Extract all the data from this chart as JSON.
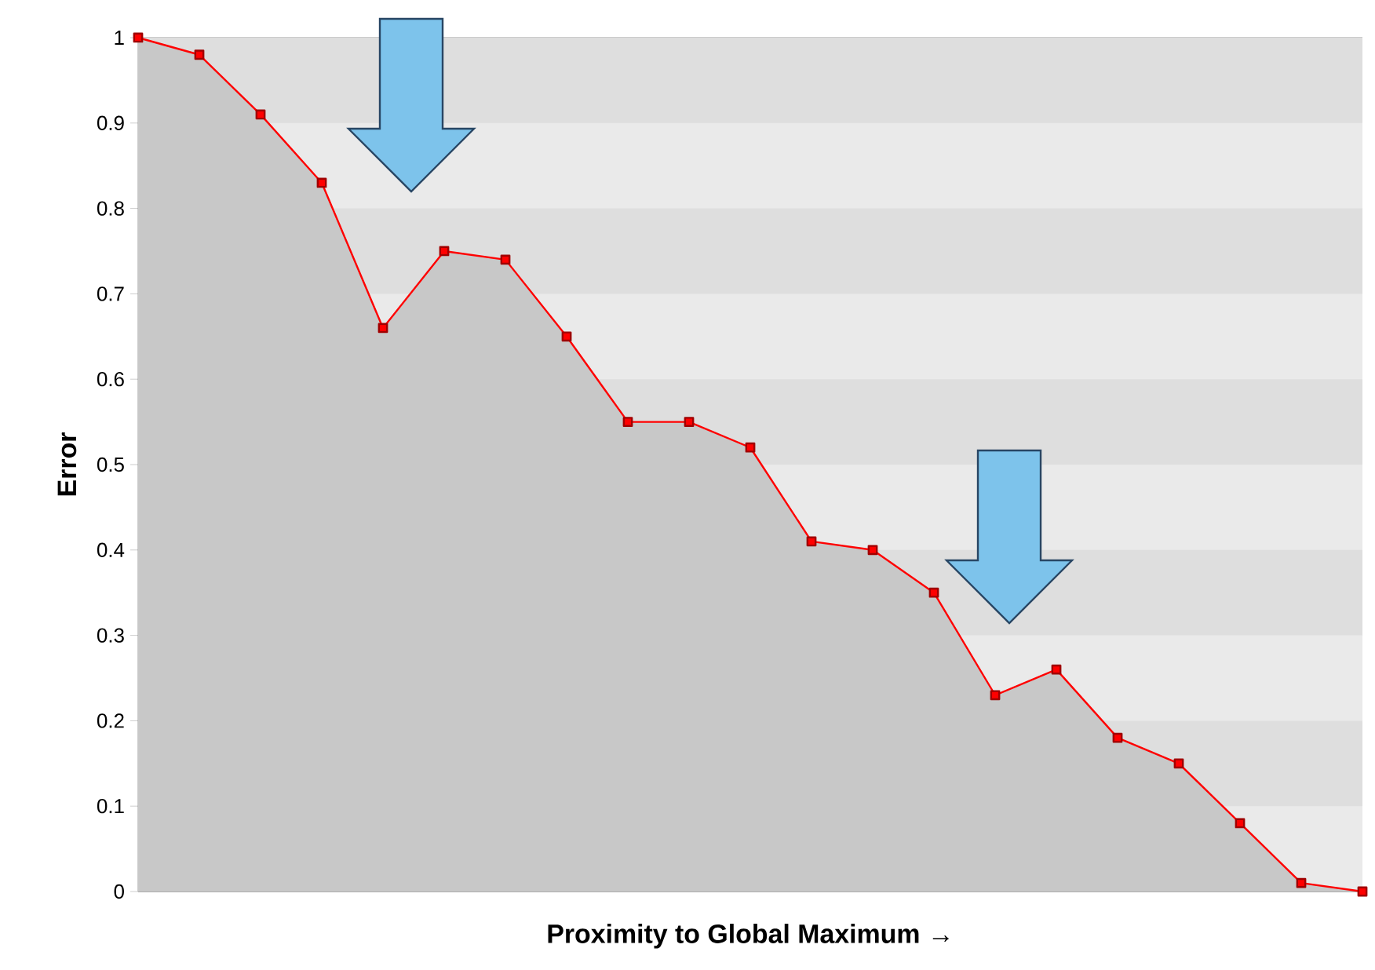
{
  "chart_data": {
    "type": "area",
    "xlabel": "Proximity to Global Maximum →",
    "ylabel": "Error",
    "categories": [
      null,
      null,
      null,
      null,
      null,
      null,
      null,
      null,
      null,
      null,
      null,
      null,
      null,
      null,
      null,
      null,
      null,
      null,
      null,
      null,
      null
    ],
    "series": [
      {
        "color": "#ff0000",
        "values": [
          1,
          0.98,
          0.91,
          0.83,
          0.66,
          0.75,
          0.74,
          0.65,
          0.55,
          0.55,
          0.52,
          0.41,
          0.4,
          0.35,
          0.23,
          0.26,
          0.18,
          0.15,
          0.08,
          0.01,
          0
        ]
      }
    ],
    "ylim": [
      0,
      1
    ],
    "yticks": [
      0,
      0.1,
      0.2,
      0.3,
      0.4,
      0.5,
      0.6,
      0.7,
      0.8,
      0.9,
      1
    ],
    "grid": "y",
    "marker": "square",
    "tick_labels": "y",
    "line_style": "solid"
  }
}
